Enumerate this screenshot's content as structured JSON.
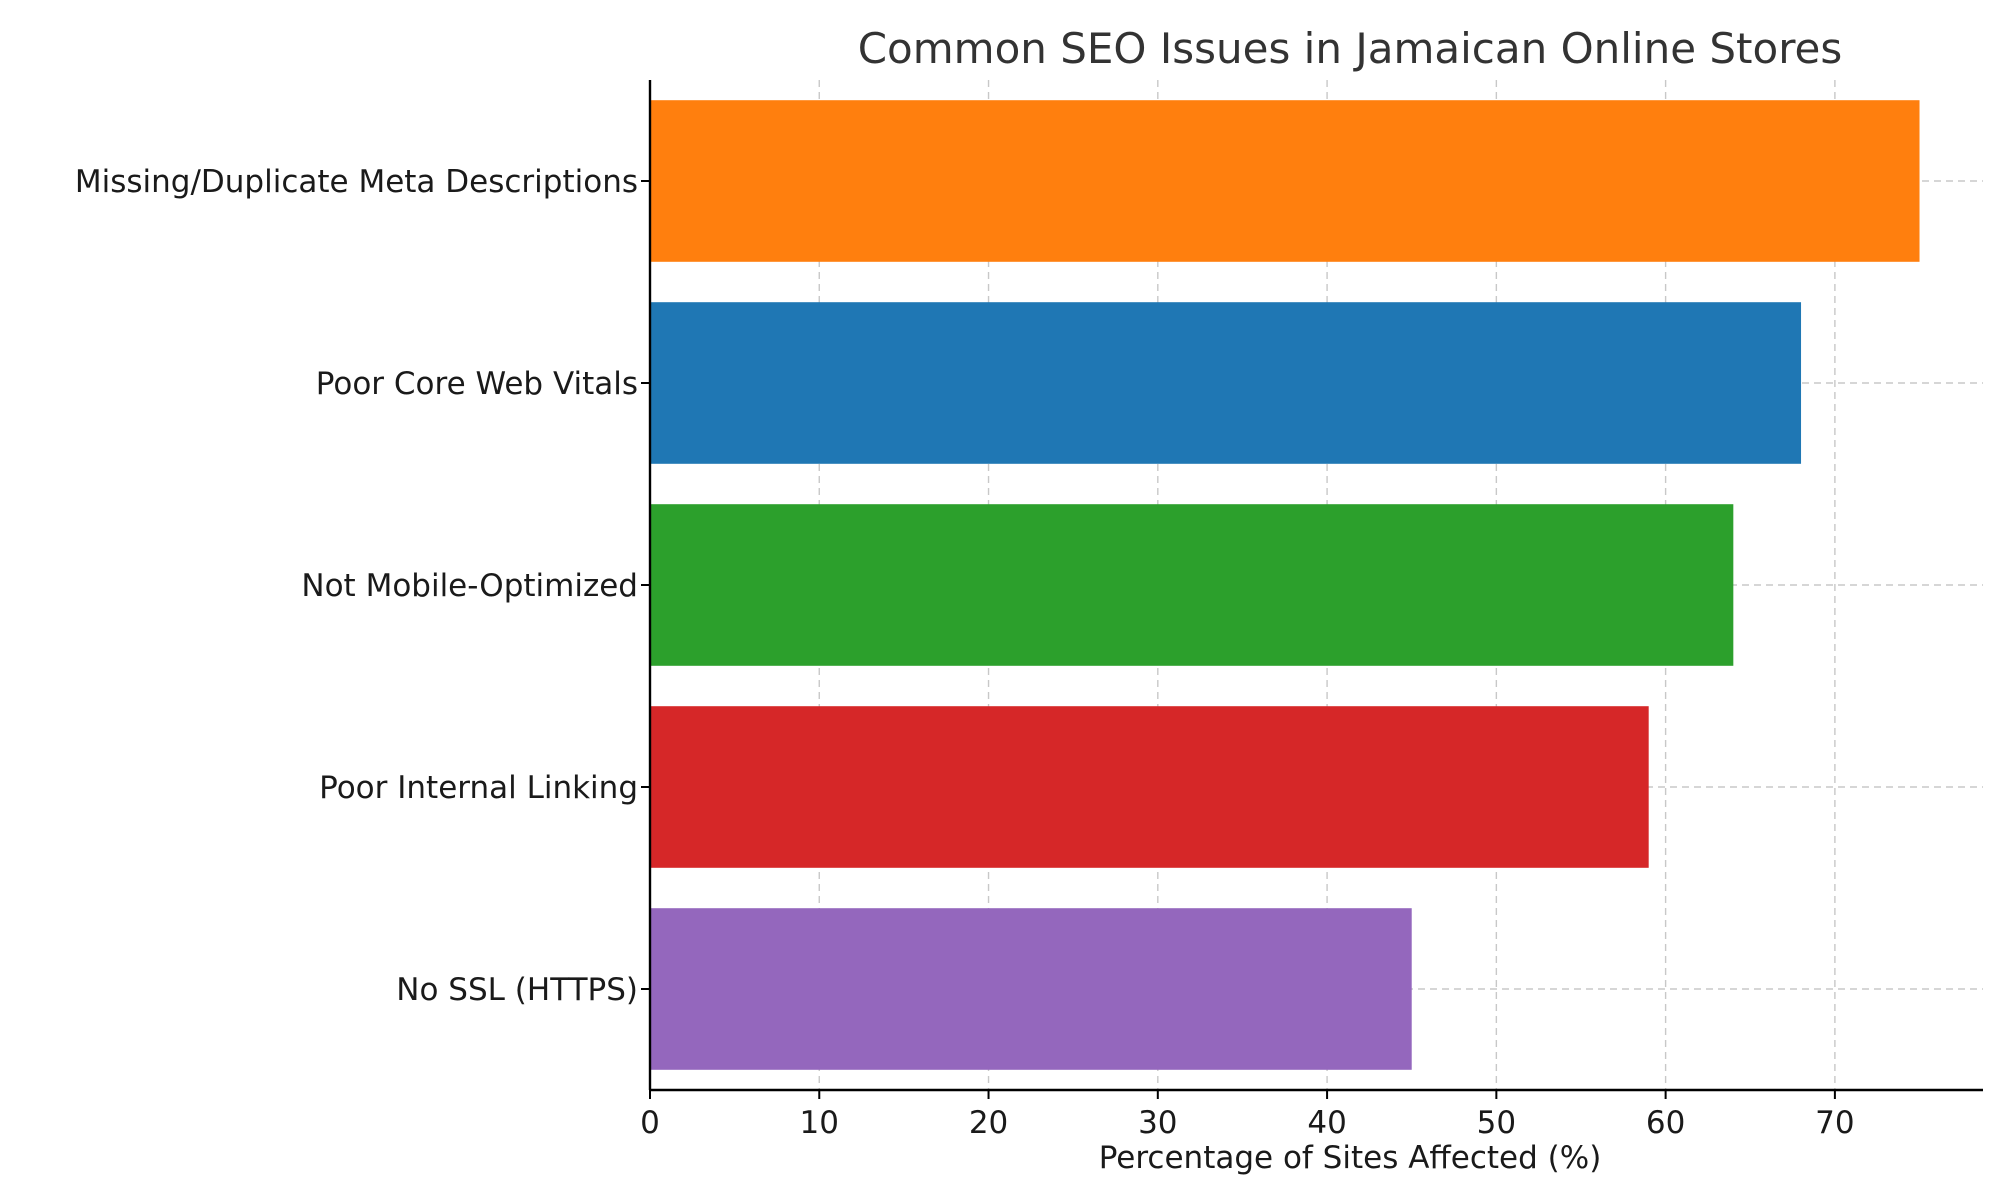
{
  "chart_data": {
    "type": "bar",
    "orientation": "horizontal",
    "title": "Common SEO Issues in Jamaican Online Stores",
    "xlabel": "Percentage of Sites Affected (%)",
    "ylabel": "",
    "categories": [
      "Missing/Duplicate Meta Descriptions",
      "Poor Core Web Vitals",
      "Not Mobile-Optimized",
      "Poor Internal Linking",
      "No SSL (HTTPS)"
    ],
    "values": [
      75,
      68,
      64,
      59,
      45
    ],
    "colors": [
      "#ff7f0e",
      "#1f77b4",
      "#2ca02c",
      "#d62728",
      "#9467bd"
    ],
    "xlim": [
      0,
      78.75
    ],
    "xticks": [
      0,
      10,
      20,
      30,
      40,
      50,
      60,
      70
    ],
    "grid": true
  }
}
